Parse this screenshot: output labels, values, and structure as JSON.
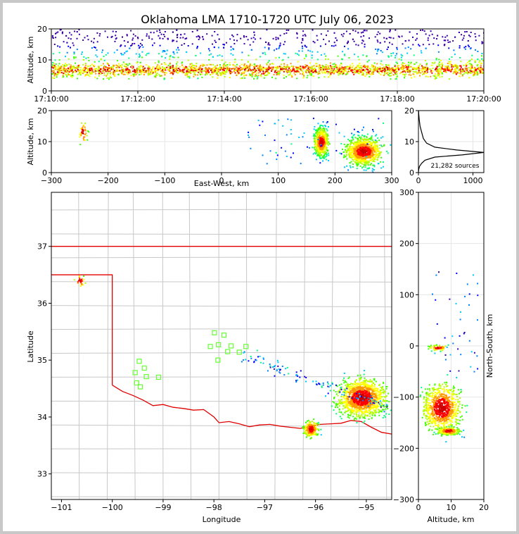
{
  "chart_data": [
    {
      "type": "scatter",
      "title": "Oklahoma LMA 1710-1720 UTC July 06, 2023",
      "xlabel": "",
      "ylabel": "Altitude, km",
      "x_ticks": [
        "17:10:00",
        "17:12:00",
        "17:14:00",
        "17:16:00",
        "17:18:00",
        "17:20:00"
      ],
      "xlim": [
        "17:10:00",
        "17:20:00"
      ],
      "ylim": [
        0,
        20
      ],
      "y_ticks": [
        0,
        10,
        20
      ],
      "series": [
        {
          "description": "continuous band of VHF sources, densest 4-10 km, sparse up to 20 km",
          "altitude_km_range": [
            4,
            20
          ],
          "core_altitude_km": 7
        }
      ]
    },
    {
      "type": "scatter",
      "xlabel": "East-West, km",
      "ylabel": "Altitude, km",
      "xlim": [
        -300,
        300
      ],
      "ylim": [
        0,
        20
      ],
      "x_ticks": [
        -300,
        -200,
        -100,
        0,
        100,
        200,
        300
      ],
      "y_ticks": [
        0,
        10,
        20
      ],
      "clusters": [
        {
          "ew_km": [
            160,
            190
          ],
          "alt_km": [
            5,
            20
          ],
          "core_alt_km": 10
        },
        {
          "ew_km": [
            210,
            290
          ],
          "alt_km": [
            4,
            20
          ],
          "core_alt_km": 7
        },
        {
          "ew_km": [
            -255,
            -235
          ],
          "alt_km": [
            8,
            18
          ]
        }
      ]
    },
    {
      "type": "line",
      "xlabel": "",
      "ylabel": "",
      "xlim": [
        0,
        1200
      ],
      "ylim": [
        0,
        20
      ],
      "x_ticks": [
        0,
        1000
      ],
      "y_ticks": [
        0,
        10,
        20
      ],
      "annotation": "21,282 sources",
      "profile": [
        [
          0,
          0
        ],
        [
          5,
          1
        ],
        [
          20,
          2
        ],
        [
          60,
          3
        ],
        [
          120,
          4
        ],
        [
          300,
          5
        ],
        [
          800,
          5.7
        ],
        [
          1200,
          6.5
        ],
        [
          700,
          7.3
        ],
        [
          300,
          8.2
        ],
        [
          150,
          9.5
        ],
        [
          90,
          11
        ],
        [
          60,
          13
        ],
        [
          30,
          15
        ],
        [
          15,
          17
        ],
        [
          5,
          19
        ],
        [
          2,
          20
        ]
      ]
    },
    {
      "type": "scatter",
      "xlabel": "Longitude",
      "ylabel": "Latitude",
      "xlim": [
        -101.2,
        -94.5
      ],
      "ylim": [
        32.55,
        37.95
      ],
      "x_ticks": [
        -101,
        -100,
        -99,
        -98,
        -97,
        -96,
        -95
      ],
      "y_ticks": [
        33,
        34,
        35,
        36,
        37
      ],
      "stations": [
        [
          -99.47,
          34.98
        ],
        [
          -99.37,
          34.86
        ],
        [
          -99.55,
          34.78
        ],
        [
          -99.33,
          34.71
        ],
        [
          -99.09,
          34.7
        ],
        [
          -99.52,
          34.6
        ],
        [
          -99.45,
          34.53
        ],
        [
          -97.99,
          35.48
        ],
        [
          -97.8,
          35.44
        ],
        [
          -98.07,
          35.24
        ],
        [
          -97.91,
          35.27
        ],
        [
          -97.66,
          35.25
        ],
        [
          -97.37,
          35.24
        ],
        [
          -97.73,
          35.15
        ],
        [
          -97.5,
          35.14
        ],
        [
          -97.92,
          35.0
        ]
      ],
      "clusters": [
        {
          "lon": [
            -95.8,
            -94.5
          ],
          "lat": [
            33.9,
            34.8
          ],
          "center": [
            -95.1,
            34.35
          ]
        },
        {
          "lon": [
            -96.3,
            -95.9
          ],
          "lat": [
            33.6,
            34.0
          ],
          "center": [
            -96.1,
            33.8
          ]
        },
        {
          "lon": [
            -100.8,
            -100.5
          ],
          "lat": [
            36.25,
            36.55
          ]
        }
      ]
    },
    {
      "type": "scatter",
      "xlabel": "Altitude, km",
      "ylabel": "North-South, km",
      "xlim": [
        0,
        20
      ],
      "ylim": [
        -300,
        300
      ],
      "x_ticks": [
        0,
        10,
        20
      ],
      "y_ticks": [
        -300,
        -200,
        -100,
        0,
        100,
        200,
        300
      ],
      "clusters": [
        {
          "alt_km": [
            4,
            20
          ],
          "ns_km": [
            -190,
            -65
          ],
          "core": [
            7,
            -120
          ]
        },
        {
          "alt_km": [
            5,
            14
          ],
          "ns_km": [
            -175,
            -155
          ],
          "core": [
            9,
            -165
          ]
        },
        {
          "alt_km": [
            2,
            10
          ],
          "ns_km": [
            -10,
            5
          ]
        }
      ]
    }
  ]
}
